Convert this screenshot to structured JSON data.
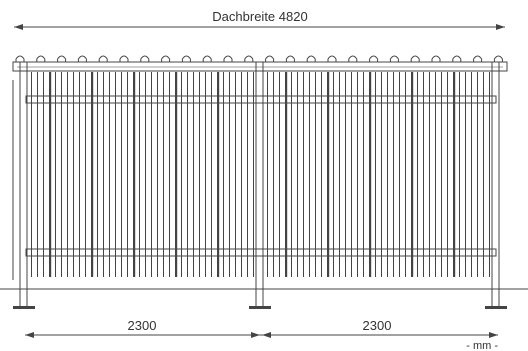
{
  "dimensions": {
    "roof_width_label": "Dachbreite 4820",
    "bay_left_label": "2300",
    "bay_right_label": "2300",
    "unit_label": "- mm -"
  },
  "colors": {
    "line": "#444444",
    "text": "#333333",
    "background": "#ffffff"
  }
}
